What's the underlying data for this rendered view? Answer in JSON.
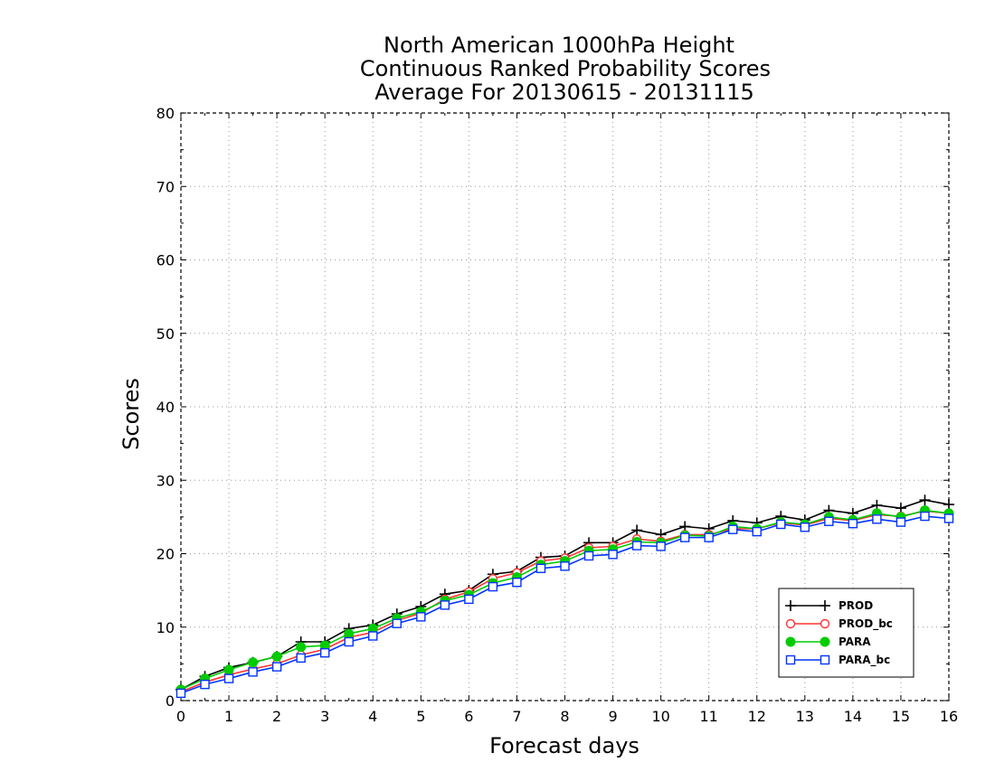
{
  "chart_data": {
    "type": "line",
    "title_lines": [
      "North American 1000hPa Height",
      "Continuous Ranked Probability Scores",
      "Average For 20130615 - 20131115"
    ],
    "xlabel": "Forecast days",
    "ylabel": "Scores",
    "xlim": [
      0,
      16
    ],
    "ylim": [
      0,
      80
    ],
    "x_ticks": [
      0,
      1,
      2,
      3,
      4,
      5,
      6,
      7,
      8,
      9,
      10,
      11,
      12,
      13,
      14,
      15,
      16
    ],
    "y_ticks": [
      0,
      10,
      20,
      30,
      40,
      50,
      60,
      70,
      80
    ],
    "grid": true,
    "legend_position": "bottom-right",
    "x": [
      0,
      0.5,
      1,
      1.5,
      2,
      2.5,
      3,
      3.5,
      4,
      4.5,
      5,
      5.5,
      6,
      6.5,
      7,
      7.5,
      8,
      8.5,
      9,
      9.5,
      10,
      10.5,
      11,
      11.5,
      12,
      12.5,
      13,
      13.5,
      14,
      14.5,
      15,
      15.5,
      16
    ],
    "series": [
      {
        "name": "PROD",
        "color": "#000000",
        "marker": "plus",
        "values": [
          1.5,
          3.3,
          4.5,
          5.2,
          6.0,
          8.0,
          8.0,
          9.8,
          10.3,
          11.8,
          12.8,
          14.5,
          15.0,
          17.2,
          17.6,
          19.5,
          19.7,
          21.5,
          21.5,
          23.2,
          22.6,
          23.7,
          23.4,
          24.5,
          24.2,
          25.1,
          24.6,
          25.9,
          25.5,
          26.6,
          26.2,
          27.3,
          26.7
        ]
      },
      {
        "name": "PROD_bc",
        "color": "#ff3333",
        "marker": "open-circle",
        "values": [
          1.2,
          2.5,
          3.5,
          4.3,
          5.0,
          6.2,
          7.0,
          8.6,
          9.3,
          10.9,
          11.9,
          13.8,
          14.8,
          16.6,
          17.4,
          19.0,
          19.4,
          20.8,
          21.0,
          22.0,
          21.7,
          22.6,
          22.6,
          23.4,
          23.4,
          24.2,
          23.9,
          24.8,
          24.5,
          25.3,
          25.1,
          25.8,
          25.5
        ]
      },
      {
        "name": "PARA",
        "color": "#00cc00",
        "marker": "filled-circle",
        "values": [
          1.5,
          3.0,
          4.2,
          5.2,
          6.0,
          7.3,
          7.5,
          9.1,
          9.8,
          11.2,
          12.1,
          13.6,
          14.4,
          16.0,
          16.8,
          18.5,
          19.0,
          20.4,
          20.6,
          21.6,
          21.5,
          22.5,
          22.4,
          23.7,
          23.4,
          24.3,
          24.0,
          25.0,
          24.6,
          25.5,
          25.0,
          25.9,
          25.5
        ]
      },
      {
        "name": "PARA_bc",
        "color": "#0033ff",
        "marker": "open-square",
        "values": [
          1.0,
          2.2,
          3.0,
          3.9,
          4.6,
          5.8,
          6.5,
          8.0,
          8.8,
          10.5,
          11.4,
          13.0,
          13.8,
          15.5,
          16.1,
          18.0,
          18.3,
          19.7,
          19.9,
          21.1,
          21.0,
          22.2,
          22.2,
          23.3,
          23.0,
          24.0,
          23.6,
          24.4,
          24.1,
          24.7,
          24.3,
          25.1,
          24.8
        ]
      }
    ]
  }
}
